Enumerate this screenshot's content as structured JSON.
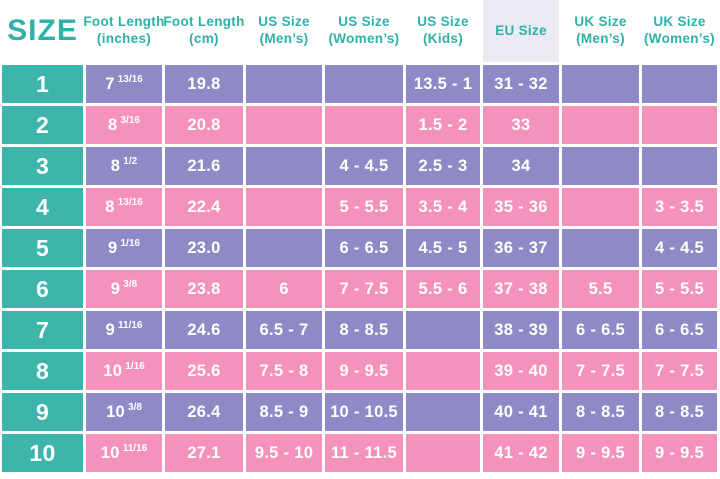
{
  "colors": {
    "teal": "#3db5ab",
    "teal_text": "#2fb0a8",
    "purple": "#8e8ac5",
    "pink": "#f492bb",
    "eu_header_bg": "#ebeaf2",
    "cell_text": "#ffffff",
    "page_bg": "#ffffff"
  },
  "header": {
    "size_label": "SIZE",
    "columns": [
      {
        "line1": "Foot Length",
        "line2": "(inches)"
      },
      {
        "line1": "Foot Length",
        "line2": "(cm)"
      },
      {
        "line1": "US Size",
        "line2": "(Men’s)"
      },
      {
        "line1": "US Size",
        "line2": "(Women’s)"
      },
      {
        "line1": "US Size",
        "line2": "(Kids)"
      },
      {
        "line1": "EU Size",
        "line2": ""
      },
      {
        "line1": "UK Size",
        "line2": "(Men’s)"
      },
      {
        "line1": "UK Size",
        "line2": "(Women’s)"
      }
    ]
  },
  "table": {
    "rows": [
      {
        "size": "1",
        "in_base": "7",
        "in_frac": "13/16",
        "cm": "19.8",
        "us_m": "",
        "us_w": "",
        "us_k": "13.5 - 1",
        "eu": "31 - 32",
        "uk_m": "",
        "uk_w": ""
      },
      {
        "size": "2",
        "in_base": "8",
        "in_frac": "3/16",
        "cm": "20.8",
        "us_m": "",
        "us_w": "",
        "us_k": "1.5 - 2",
        "eu": "33",
        "uk_m": "",
        "uk_w": ""
      },
      {
        "size": "3",
        "in_base": "8",
        "in_frac": "1/2",
        "cm": "21.6",
        "us_m": "",
        "us_w": "4 - 4.5",
        "us_k": "2.5 - 3",
        "eu": "34",
        "uk_m": "",
        "uk_w": ""
      },
      {
        "size": "4",
        "in_base": "8",
        "in_frac": "13/16",
        "cm": "22.4",
        "us_m": "",
        "us_w": "5 - 5.5",
        "us_k": "3.5 - 4",
        "eu": "35 - 36",
        "uk_m": "",
        "uk_w": "3 - 3.5"
      },
      {
        "size": "5",
        "in_base": "9",
        "in_frac": "1/16",
        "cm": "23.0",
        "us_m": "",
        "us_w": "6 - 6.5",
        "us_k": "4.5 - 5",
        "eu": "36 - 37",
        "uk_m": "",
        "uk_w": "4 - 4.5"
      },
      {
        "size": "6",
        "in_base": "9",
        "in_frac": "3/8",
        "cm": "23.8",
        "us_m": "6",
        "us_w": "7 - 7.5",
        "us_k": "5.5 - 6",
        "eu": "37 - 38",
        "uk_m": "5.5",
        "uk_w": "5 - 5.5"
      },
      {
        "size": "7",
        "in_base": "9",
        "in_frac": "11/16",
        "cm": "24.6",
        "us_m": "6.5 - 7",
        "us_w": "8 - 8.5",
        "us_k": "",
        "eu": "38 - 39",
        "uk_m": "6 - 6.5",
        "uk_w": "6 - 6.5"
      },
      {
        "size": "8",
        "in_base": "10",
        "in_frac": "1/16",
        "cm": "25.6",
        "us_m": "7.5 - 8",
        "us_w": "9 - 9.5",
        "us_k": "",
        "eu": "39 - 40",
        "uk_m": "7 - 7.5",
        "uk_w": "7 - 7.5"
      },
      {
        "size": "9",
        "in_base": "10",
        "in_frac": "3/8",
        "cm": "26.4",
        "us_m": "8.5 - 9",
        "us_w": "10 - 10.5",
        "us_k": "",
        "eu": "40 - 41",
        "uk_m": "8 - 8.5",
        "uk_w": "8 - 8.5"
      },
      {
        "size": "10",
        "in_base": "10",
        "in_frac": "11/16",
        "cm": "27.1",
        "us_m": "9.5 - 10",
        "us_w": "11 - 11.5",
        "us_k": "",
        "eu": "41 - 42",
        "uk_m": "9 - 9.5",
        "uk_w": "9 - 9.5"
      }
    ]
  },
  "chart_data": {
    "type": "table",
    "title": "SIZE",
    "columns": [
      "SIZE",
      "Foot Length (inches)",
      "Foot Length (cm)",
      "US Size (Men’s)",
      "US Size (Women’s)",
      "US Size (Kids)",
      "EU Size",
      "UK Size (Men’s)",
      "UK Size (Women’s)"
    ],
    "rows": [
      [
        "1",
        "7 13/16",
        "19.8",
        "",
        "",
        "13.5 - 1",
        "31 - 32",
        "",
        ""
      ],
      [
        "2",
        "8 3/16",
        "20.8",
        "",
        "",
        "1.5 - 2",
        "33",
        "",
        ""
      ],
      [
        "3",
        "8 1/2",
        "21.6",
        "",
        "4 - 4.5",
        "2.5 - 3",
        "34",
        "",
        ""
      ],
      [
        "4",
        "8 13/16",
        "22.4",
        "",
        "5 - 5.5",
        "3.5 - 4",
        "35 - 36",
        "",
        "3 - 3.5"
      ],
      [
        "5",
        "9 1/16",
        "23.0",
        "",
        "6 - 6.5",
        "4.5 - 5",
        "36 - 37",
        "",
        "4 - 4.5"
      ],
      [
        "6",
        "9 3/8",
        "23.8",
        "6",
        "7 - 7.5",
        "5.5 - 6",
        "37 - 38",
        "5.5",
        "5 - 5.5"
      ],
      [
        "7",
        "9 11/16",
        "24.6",
        "6.5 - 7",
        "8 - 8.5",
        "",
        "38 - 39",
        "6 - 6.5",
        "6 - 6.5"
      ],
      [
        "8",
        "10 1/16",
        "25.6",
        "7.5 - 8",
        "9 - 9.5",
        "",
        "39 - 40",
        "7 - 7.5",
        "7 - 7.5"
      ],
      [
        "9",
        "10 3/8",
        "26.4",
        "8.5 - 9",
        "10 - 10.5",
        "",
        "40 - 41",
        "8 - 8.5",
        "8 - 8.5"
      ],
      [
        "10",
        "10 11/16",
        "27.1",
        "9.5 - 10",
        "11 - 11.5",
        "",
        "41 - 42",
        "9 - 9.5",
        "9 - 9.5"
      ]
    ],
    "row_color_pattern": [
      "purple",
      "pink"
    ],
    "first_column_color": "teal"
  }
}
